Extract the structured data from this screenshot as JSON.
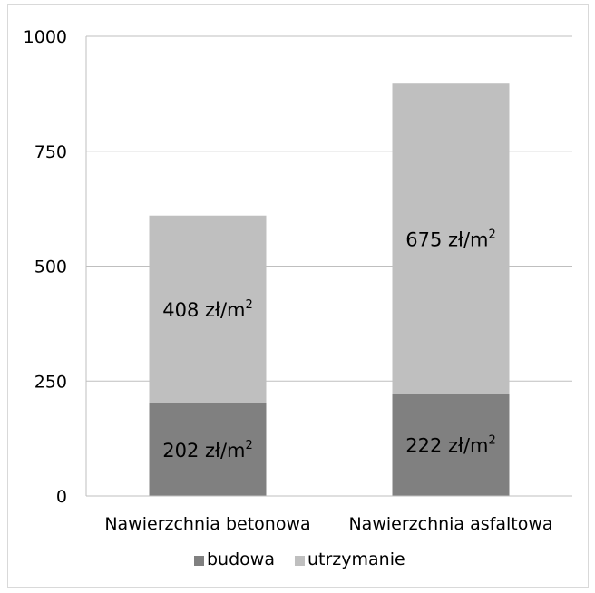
{
  "chart_data": {
    "type": "bar",
    "stacked": true,
    "categories": [
      "Nawierzchnia betonowa",
      "Nawierzchnia asfaltowa"
    ],
    "series": [
      {
        "name": "budowa",
        "values": [
          202,
          222
        ],
        "color": "#808080",
        "labels": [
          "202 zł/m",
          "222 zł/m"
        ]
      },
      {
        "name": "utrzymanie",
        "values": [
          408,
          675
        ],
        "color": "#bfbfbf",
        "labels": [
          "408 zł/m",
          "675 zł/m"
        ]
      }
    ],
    "label_superscript": "2",
    "yticks": [
      "0",
      "250",
      "500",
      "750",
      "1000"
    ],
    "ylim": [
      0,
      1000
    ],
    "grid": true,
    "legend_position": "bottom"
  }
}
